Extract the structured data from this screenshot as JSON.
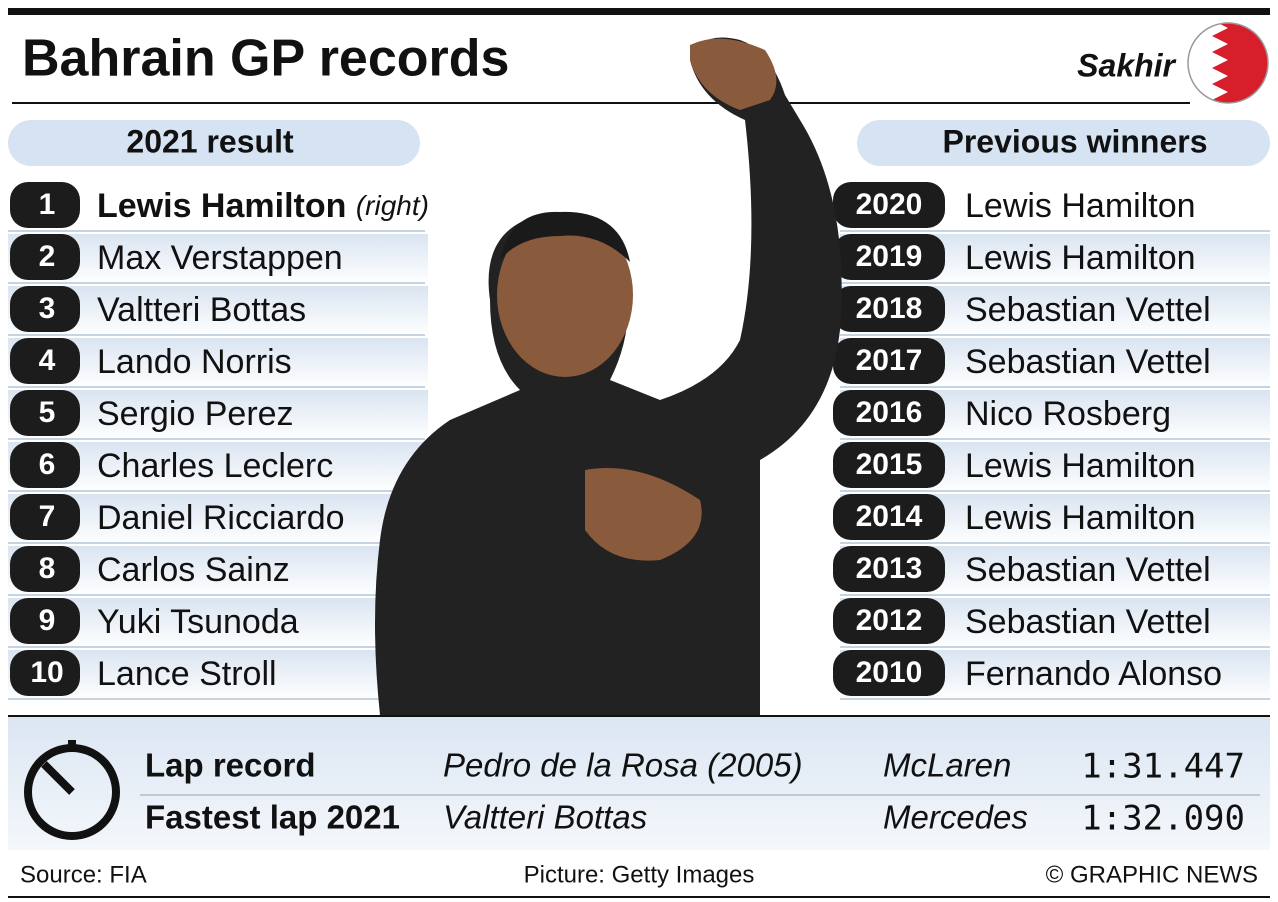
{
  "header": {
    "title": "Bahrain GP records",
    "location": "Sakhir"
  },
  "result": {
    "title": "2021 result",
    "rows": [
      {
        "position": 1,
        "driver": "Lewis Hamilton",
        "note": "(right)"
      },
      {
        "position": 2,
        "driver": "Max Verstappen"
      },
      {
        "position": 3,
        "driver": "Valtteri Bottas"
      },
      {
        "position": 4,
        "driver": "Lando Norris"
      },
      {
        "position": 5,
        "driver": "Sergio Perez"
      },
      {
        "position": 6,
        "driver": "Charles Leclerc"
      },
      {
        "position": 7,
        "driver": "Daniel Ricciardo"
      },
      {
        "position": 8,
        "driver": "Carlos Sainz"
      },
      {
        "position": 9,
        "driver": "Yuki Tsunoda"
      },
      {
        "position": 10,
        "driver": "Lance Stroll"
      }
    ]
  },
  "winners": {
    "title": "Previous winners",
    "rows": [
      {
        "year": 2020,
        "driver": "Lewis Hamilton"
      },
      {
        "year": 2019,
        "driver": "Lewis Hamilton"
      },
      {
        "year": 2018,
        "driver": "Sebastian Vettel"
      },
      {
        "year": 2017,
        "driver": "Sebastian Vettel"
      },
      {
        "year": 2016,
        "driver": "Nico Rosberg"
      },
      {
        "year": 2015,
        "driver": "Lewis Hamilton"
      },
      {
        "year": 2014,
        "driver": "Lewis Hamilton"
      },
      {
        "year": 2013,
        "driver": "Sebastian Vettel"
      },
      {
        "year": 2012,
        "driver": "Sebastian Vettel"
      },
      {
        "year": 2010,
        "driver": "Fernando Alonso"
      }
    ]
  },
  "laps": {
    "rows": [
      {
        "label": "Lap record",
        "driver": "Pedro de la Rosa (2005)",
        "team": "McLaren",
        "time": "1:31.447"
      },
      {
        "label": "Fastest lap 2021",
        "driver": "Valtteri Bottas",
        "team": "Mercedes",
        "time": "1:32.090"
      }
    ]
  },
  "footer": {
    "source": "Source: FIA",
    "picture": "Picture: Getty Images",
    "credit": "© GRAPHIC NEWS"
  }
}
